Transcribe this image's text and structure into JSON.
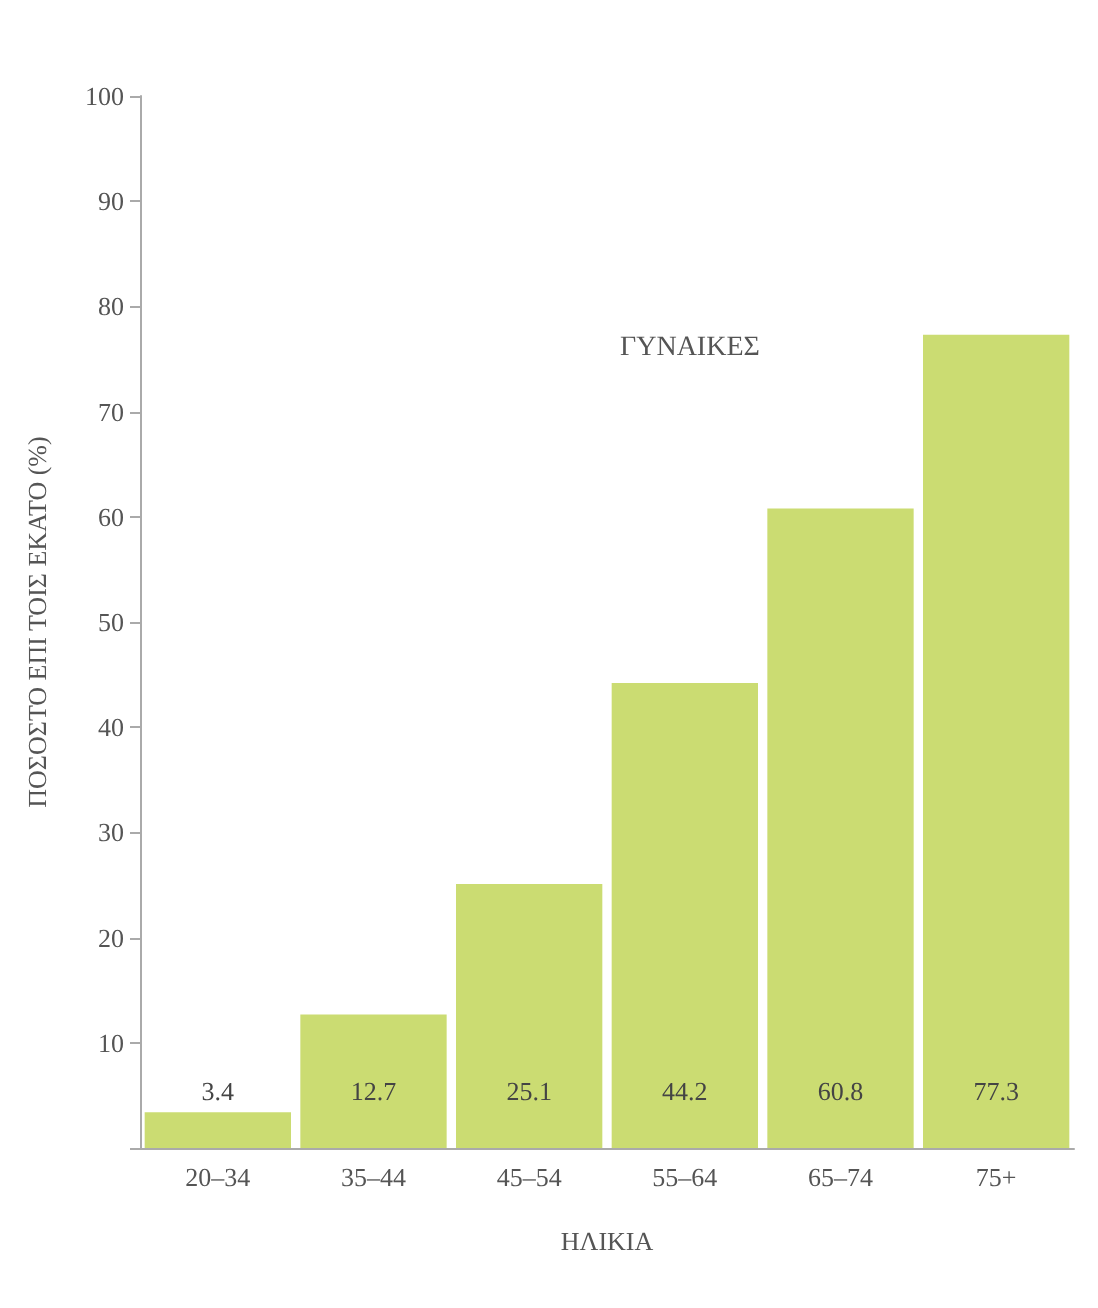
{
  "chart_data": {
    "type": "bar",
    "title": "ΓΥΝΑΙΚΕΣ",
    "xlabel": "ΗΛΙΚΙΑ",
    "ylabel": "ΠΟΣΟΣΤΟ ΕΠΙ ΤΟΙΣ ΕΚΑΤΟ (%)",
    "categories": [
      "20–34",
      "35–44",
      "45–54",
      "55–64",
      "65–74",
      "75+"
    ],
    "values": [
      3.4,
      12.7,
      25.1,
      44.2,
      60.8,
      77.3
    ],
    "color": "#cbdc72",
    "ylim": [
      0,
      100
    ],
    "yticks": [
      {
        "value": 0,
        "label": null
      },
      10,
      20,
      30,
      40,
      50,
      60,
      70,
      80,
      90,
      100
    ],
    "grid": false,
    "data_labels": true
  }
}
